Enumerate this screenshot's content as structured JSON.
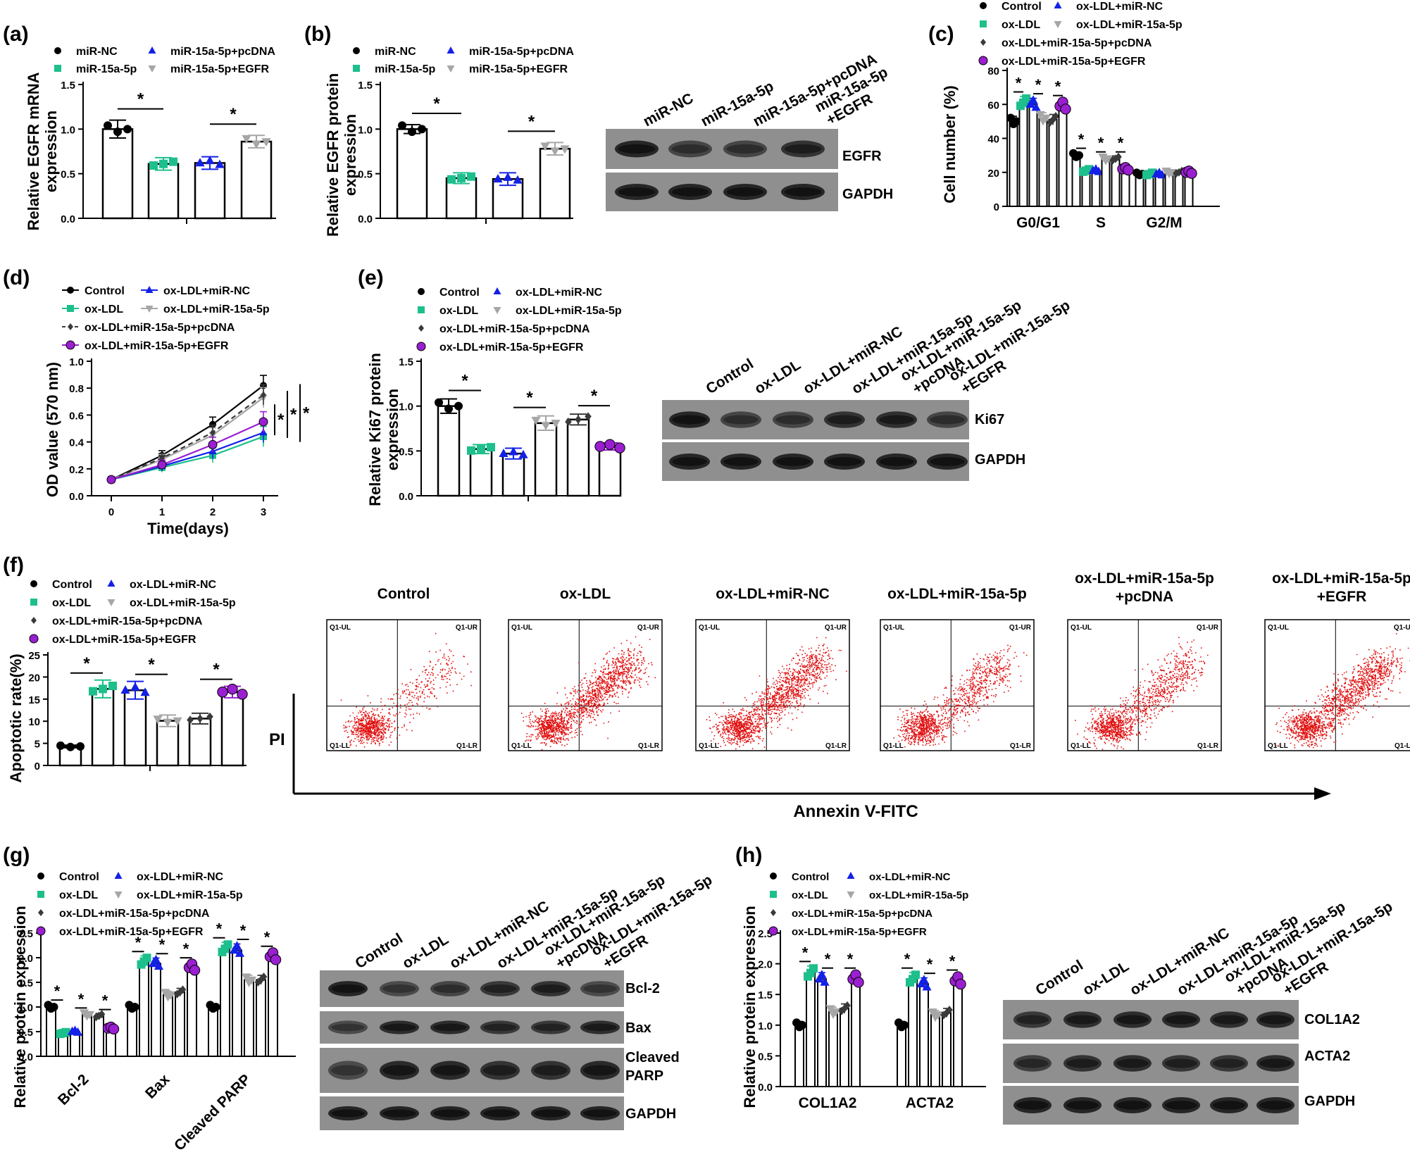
{
  "colors": {
    "black": "#000000",
    "green": "#1dbf8c",
    "blue": "#1420e6",
    "gray": "#a6a6a6",
    "darkgray": "#3a3a3a",
    "purple": "#9a1fd1",
    "red": "#e01010"
  },
  "panels": {
    "a": {
      "letter": "(a)",
      "legend": [
        "miR-NC",
        "miR-15a-5p",
        "miR-15a-5p+pcDNA",
        "miR-15a-5p+EGFR"
      ],
      "ylabel": [
        "Relative EGFR mRNA",
        "expression"
      ]
    },
    "b": {
      "letter": "(b)",
      "legend": [
        "miR-NC",
        "miR-15a-5p",
        "miR-15a-5p+pcDNA",
        "miR-15a-5p+EGFR"
      ],
      "ylabel": [
        "Relative EGFR protein",
        "expression"
      ],
      "blot_lanes": [
        "miR-NC",
        "miR-15a-5p",
        "miR-15a-5p+pcDNA",
        "miR-15a-5p",
        "+EGFR"
      ],
      "blot_rows": [
        "EGFR",
        "GAPDH"
      ]
    },
    "c": {
      "letter": "(c)",
      "legend": [
        "Control",
        "ox-LDL",
        "ox-LDL+miR-15a-5p+pcDNA",
        "ox-LDL+miR-15a-5p+EGFR",
        "ox-LDL+miR-NC",
        "ox-LDL+miR-15a-5p"
      ],
      "ylabel": "Cell number (%)"
    },
    "d": {
      "letter": "(d)",
      "legend": [
        "Control",
        "ox-LDL",
        "ox-LDL+miR-15a-5p+pcDNA",
        "ox-LDL+miR-15a-5p+EGFR",
        "ox-LDL+miR-NC",
        "ox-LDL+miR-15a-5p"
      ],
      "ylabel": "OD value (570 nm)",
      "xlabel": "Time(days)"
    },
    "e": {
      "letter": "(e)",
      "legend": [
        "Control",
        "ox-LDL",
        "ox-LDL+miR-15a-5p+pcDNA",
        "ox-LDL+miR-15a-5p+EGFR",
        "ox-LDL+miR-NC",
        "ox-LDL+miR-15a-5p"
      ],
      "ylabel": [
        "Relative Ki67 protein",
        "expression"
      ],
      "blot_lanes": [
        "Control",
        "ox-LDL",
        "ox-LDL+miR-NC",
        "ox-LDL+miR-15a-5p",
        "ox-LDL+miR-15a-5p",
        "+pcDNA",
        "ox-LDL+miR-15a-5p",
        "+EGFR"
      ],
      "blot_rows": [
        "Ki67",
        "GAPDH"
      ]
    },
    "f": {
      "letter": "(f)",
      "legend": [
        "Control",
        "ox-LDL",
        "ox-LDL+miR-15a-5p+pcDNA",
        "ox-LDL+miR-15a-5p+EGFR",
        "ox-LDL+miR-NC",
        "ox-LDL+miR-15a-5p"
      ],
      "ylabel": "Apoptotic rate(%)",
      "flow_titles": [
        [
          "Control"
        ],
        [
          "ox-LDL"
        ],
        [
          "ox-LDL+miR-NC"
        ],
        [
          "ox-LDL+miR-15a-5p"
        ],
        [
          "ox-LDL+miR-15a-5p",
          "+pcDNA"
        ],
        [
          "ox-LDL+miR-15a-5p",
          "+EGFR"
        ]
      ],
      "quadrants": [
        "Q1-UL",
        "Q1-UR",
        "Q1-LL",
        "Q1-LR"
      ],
      "xaxis": "Annexin V-FITC",
      "yaxis": "PI"
    },
    "g": {
      "letter": "(g)",
      "legend": [
        "Control",
        "ox-LDL",
        "ox-LDL+miR-15a-5p+pcDNA",
        "ox-LDL+miR-15a-5p+EGFR",
        "ox-LDL+miR-NC",
        "ox-LDL+miR-15a-5p"
      ],
      "ylabel": "Relative protein expression",
      "blot_lanes": [
        "Control",
        "ox-LDL",
        "ox-LDL+miR-NC",
        "ox-LDL+miR-15a-5p",
        "ox-LDL+miR-15a-5p",
        "+pcDNA",
        "ox-LDL+miR-15a-5p",
        "+EGFR"
      ],
      "blot_rows": [
        "Bcl-2",
        "Bax",
        "Cleaved",
        "PARP",
        "GAPDH"
      ]
    },
    "h": {
      "letter": "(h)",
      "legend": [
        "Control",
        "ox-LDL",
        "ox-LDL+miR-15a-5p+pcDNA",
        "ox-LDL+miR-15a-5p+EGFR",
        "ox-LDL+miR-NC",
        "ox-LDL+miR-15a-5p"
      ],
      "ylabel": "Relative protein expression",
      "blot_lanes": [
        "Control",
        "ox-LDL",
        "ox-LDL+miR-NC",
        "ox-LDL+miR-15a-5p",
        "ox-LDL+miR-15a-5p",
        "+pcDNA",
        "ox-LDL+miR-15a-5p",
        "+EGFR"
      ],
      "blot_rows": [
        "COL1A2",
        "ACTA2",
        "GAPDH"
      ]
    }
  },
  "chart_data": [
    {
      "id": "a",
      "type": "bar",
      "categories": [
        "miR-NC",
        "miR-15a-5p",
        "miR-15a-5p+pcDNA",
        "miR-15a-5p+EGFR"
      ],
      "values": [
        1.0,
        0.61,
        0.62,
        0.86
      ],
      "errors": [
        0.1,
        0.07,
        0.07,
        0.07
      ],
      "ylim": [
        0,
        1.5
      ],
      "yticks": [
        "0.0",
        "0.5",
        "1.0",
        "1.5"
      ],
      "sig": [
        [
          0,
          1
        ],
        [
          2,
          3
        ]
      ],
      "sig_label": "*"
    },
    {
      "id": "b",
      "type": "bar",
      "categories": [
        "miR-NC",
        "miR-15a-5p",
        "miR-15a-5p+pcDNA",
        "miR-15a-5p+EGFR"
      ],
      "values": [
        1.0,
        0.45,
        0.44,
        0.78
      ],
      "errors": [
        0.05,
        0.06,
        0.07,
        0.07
      ],
      "ylim": [
        0,
        1.5
      ],
      "yticks": [
        "0.0",
        "0.5",
        "1.0",
        "1.5"
      ],
      "sig": [
        [
          0,
          1
        ],
        [
          2,
          3
        ]
      ],
      "sig_label": "*"
    },
    {
      "id": "c",
      "type": "bar",
      "groups": [
        "G0/G1",
        "S",
        "G2/M"
      ],
      "series": [
        {
          "name": "Control",
          "values": [
            50,
            30,
            19
          ]
        },
        {
          "name": "ox-LDL",
          "values": [
            61,
            21,
            19
          ]
        },
        {
          "name": "ox-LDL+miR-NC",
          "values": [
            60,
            21,
            19
          ]
        },
        {
          "name": "ox-LDL+miR-15a-5p",
          "values": [
            52,
            28,
            20
          ]
        },
        {
          "name": "ox-LDL+miR-15a-5p+pcDNA",
          "values": [
            51,
            28,
            20
          ]
        },
        {
          "name": "ox-LDL+miR-15a-5p+EGFR",
          "values": [
            59,
            22,
            20
          ]
        }
      ],
      "ylim": [
        0,
        80
      ],
      "yticks": [
        "0",
        "20",
        "40",
        "60",
        "80"
      ],
      "sig_label": "*"
    },
    {
      "id": "d",
      "type": "line",
      "x": [
        0,
        1,
        2,
        3
      ],
      "xticks": [
        "0",
        "1",
        "2",
        "3"
      ],
      "series": [
        {
          "name": "Control",
          "values": [
            0.12,
            0.3,
            0.53,
            0.82
          ]
        },
        {
          "name": "ox-LDL",
          "values": [
            0.12,
            0.21,
            0.3,
            0.44
          ]
        },
        {
          "name": "ox-LDL+miR-NC",
          "values": [
            0.12,
            0.22,
            0.33,
            0.47
          ]
        },
        {
          "name": "ox-LDL+miR-15a-5p",
          "values": [
            0.12,
            0.27,
            0.45,
            0.73
          ]
        },
        {
          "name": "ox-LDL+miR-15a-5p+pcDNA",
          "values": [
            0.12,
            0.28,
            0.47,
            0.75
          ]
        },
        {
          "name": "ox-LDL+miR-15a-5p+EGFR",
          "values": [
            0.12,
            0.23,
            0.38,
            0.55
          ]
        }
      ],
      "ylim": [
        0,
        1.0
      ],
      "yticks": [
        "0.0",
        "0.2",
        "0.4",
        "0.6",
        "0.8",
        "1.0"
      ],
      "sig_label": "*"
    },
    {
      "id": "e",
      "type": "bar",
      "categories": [
        "Control",
        "ox-LDL",
        "ox-LDL+miR-NC",
        "ox-LDL+miR-15a-5p",
        "ox-LDL+miR-15a-5p+pcDNA",
        "ox-LDL+miR-15a-5p+EGFR"
      ],
      "values": [
        1.0,
        0.52,
        0.47,
        0.81,
        0.85,
        0.55
      ],
      "errors": [
        0.08,
        0.05,
        0.06,
        0.08,
        0.06,
        0.04
      ],
      "ylim": [
        0,
        1.5
      ],
      "yticks": [
        "0.0",
        "0.5",
        "1.0",
        "1.5"
      ],
      "sig": [
        [
          0,
          1
        ],
        [
          2,
          3
        ],
        [
          4,
          5
        ]
      ],
      "sig_label": "*"
    },
    {
      "id": "f",
      "type": "bar",
      "categories": [
        "Control",
        "ox-LDL",
        "ox-LDL+miR-NC",
        "ox-LDL+miR-15a-5p",
        "ox-LDL+miR-15a-5p+pcDNA",
        "ox-LDL+miR-15a-5p+EGFR"
      ],
      "values": [
        4.3,
        17.3,
        17.0,
        10.1,
        10.6,
        16.6
      ],
      "errors": [
        0.3,
        2.0,
        2.0,
        1.3,
        1.2,
        1.3
      ],
      "ylim": [
        0,
        25
      ],
      "yticks": [
        "0",
        "5",
        "10",
        "15",
        "20",
        "25"
      ],
      "sig": [
        [
          0,
          1
        ],
        [
          2,
          3
        ],
        [
          4,
          5
        ]
      ],
      "sig_label": "*"
    },
    {
      "id": "g",
      "type": "bar",
      "groups": [
        "Bcl-2",
        "Bax",
        "Cleaved PARP"
      ],
      "series": [
        {
          "name": "Control",
          "values": [
            1.0,
            1.0,
            1.0
          ]
        },
        {
          "name": "ox-LDL",
          "values": [
            0.47,
            1.92,
            2.18
          ]
        },
        {
          "name": "ox-LDL+miR-NC",
          "values": [
            0.5,
            1.88,
            2.15
          ]
        },
        {
          "name": "ox-LDL+miR-15a-5p",
          "values": [
            0.85,
            1.25,
            1.55
          ]
        },
        {
          "name": "ox-LDL+miR-15a-5p+pcDNA",
          "values": [
            0.82,
            1.3,
            1.55
          ]
        },
        {
          "name": "ox-LDL+miR-15a-5p+EGFR",
          "values": [
            0.57,
            1.8,
            2.02
          ]
        }
      ],
      "ylim": [
        0,
        2.5
      ],
      "yticks": [
        "0.0",
        "0.5",
        "1.0",
        "1.5",
        "2.0",
        "2.5"
      ],
      "sig_label": "*"
    },
    {
      "id": "h",
      "type": "bar",
      "groups": [
        "COL1A2",
        "ACTA2"
      ],
      "series": [
        {
          "name": "Control",
          "values": [
            1.0,
            1.0
          ]
        },
        {
          "name": "ox-LDL",
          "values": [
            1.85,
            1.75
          ]
        },
        {
          "name": "ox-LDL+miR-NC",
          "values": [
            1.75,
            1.67
          ]
        },
        {
          "name": "ox-LDL+miR-15a-5p",
          "values": [
            1.22,
            1.17
          ]
        },
        {
          "name": "ox-LDL+miR-15a-5p+pcDNA",
          "values": [
            1.27,
            1.2
          ]
        },
        {
          "name": "ox-LDL+miR-15a-5p+EGFR",
          "values": [
            1.75,
            1.72
          ]
        }
      ],
      "ylim": [
        0,
        2.5
      ],
      "yticks": [
        "0.0",
        "0.5",
        "1.0",
        "1.5",
        "2.0",
        "2.5"
      ],
      "sig_label": "*"
    }
  ]
}
